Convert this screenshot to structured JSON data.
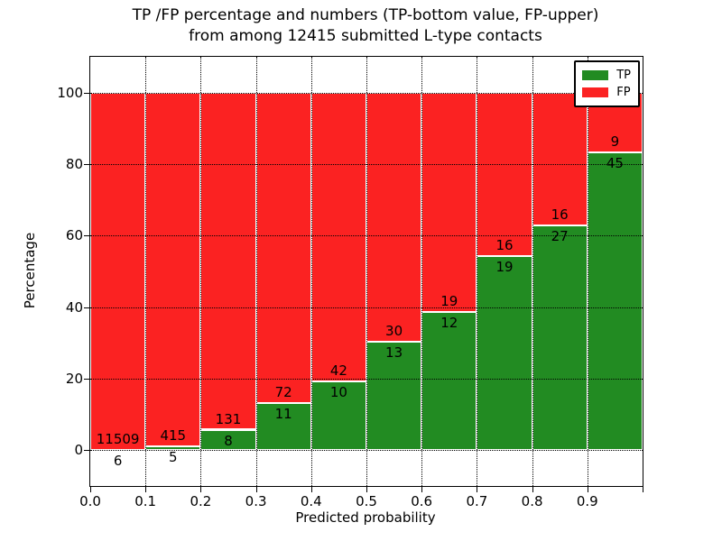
{
  "figure": {
    "title_line1": "TP /FP percentage and numbers (TP-bottom value, FP-upper)",
    "title_line2": "from among 12415 submitted L-type contacts",
    "xlabel": "Predicted probability",
    "ylabel": "Percentage"
  },
  "chart_data": {
    "type": "bar",
    "stacked": true,
    "normalized_to_percent": true,
    "title": "TP /FP percentage and numbers (TP-bottom value, FP-upper) from among 12415 submitted L-type contacts",
    "xlabel": "Predicted probability",
    "ylabel": "Percentage",
    "total_submitted": 12415,
    "xlim": [
      0.0,
      1.0
    ],
    "ylim": [
      -10,
      110
    ],
    "bin_width": 0.1,
    "categories": [
      "0.0-0.1",
      "0.1-0.2",
      "0.2-0.3",
      "0.3-0.4",
      "0.4-0.5",
      "0.5-0.6",
      "0.6-0.7",
      "0.7-0.8",
      "0.8-0.9",
      "0.9-1.0"
    ],
    "xtick_labels": [
      "0.0",
      "0.1",
      "0.2",
      "0.3",
      "0.4",
      "0.5",
      "0.6",
      "0.7",
      "0.8",
      "0.9"
    ],
    "ytick_values": [
      0,
      20,
      40,
      60,
      80,
      100
    ],
    "series": [
      {
        "name": "TP",
        "color": "#228b22",
        "counts": [
          6,
          5,
          8,
          11,
          10,
          13,
          12,
          19,
          27,
          45
        ],
        "percent": [
          0.05,
          1.19,
          5.76,
          13.25,
          19.23,
          30.23,
          38.71,
          54.29,
          62.79,
          83.33
        ]
      },
      {
        "name": "FP",
        "color": "#fb2222",
        "counts": [
          11509,
          415,
          131,
          72,
          42,
          30,
          19,
          16,
          16,
          9
        ],
        "percent": [
          99.95,
          98.81,
          94.24,
          86.75,
          80.77,
          69.77,
          61.29,
          45.71,
          37.21,
          16.67
        ]
      }
    ],
    "legend": {
      "position": "upper right",
      "entries": [
        "TP",
        "FP"
      ]
    },
    "grid": {
      "style": "dotted",
      "color": "#000000"
    },
    "annotation_note": "TP-bottom value, FP-upper"
  },
  "colors": {
    "tp_green": "#228b22",
    "fp_red": "#fb2222",
    "background": "#ffffff",
    "frame": "#000000"
  }
}
